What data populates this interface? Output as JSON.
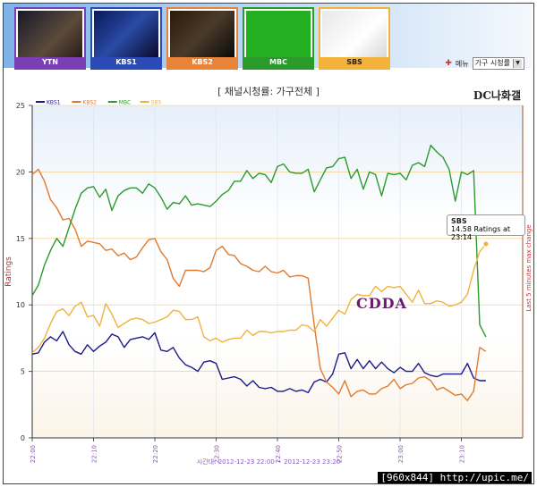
{
  "channels": [
    {
      "name": "YTN",
      "border": "#7a3fb5",
      "bar": "#7a3fb5"
    },
    {
      "name": "KBS1",
      "border": "#2a4bb5",
      "bar": "#2a4bb5"
    },
    {
      "name": "KBS2",
      "border": "#e8843a",
      "bar": "#e8843a"
    },
    {
      "name": "MBC",
      "border": "#2a9a2a",
      "bar": "#2a9a2a"
    },
    {
      "name": "SBS",
      "border": "#f3b23a",
      "bar": "#f3b23a"
    }
  ],
  "menu": {
    "label": "메뉴",
    "select_value": "가구 시청률"
  },
  "watermark": "DC나화갤",
  "annotation": "CDDA",
  "footer": "[960x844] http://upic.me/",
  "tooltip": {
    "series": "SBS",
    "text": "14.58 Ratings at 23:14"
  },
  "chart_data": {
    "type": "line",
    "title": "[ 채널시청률: 가구전체 ]",
    "ylabel": "Ratings",
    "y2label": "Last 5 minutes max change",
    "xlabel": "시간대: 2012-12-23 22:00 ~ 2012-12-23 23:20",
    "ylim": [
      0,
      25
    ],
    "yticks": [
      0,
      5,
      10,
      15,
      20,
      25
    ],
    "xlim": [
      0,
      80
    ],
    "xticks": [
      {
        "v": 0,
        "label": "22:00"
      },
      {
        "v": 10,
        "label": "22:10"
      },
      {
        "v": 20,
        "label": "22:20"
      },
      {
        "v": 30,
        "label": "22:30"
      },
      {
        "v": 40,
        "label": "22:40"
      },
      {
        "v": 50,
        "label": "22:50"
      },
      {
        "v": 60,
        "label": "23:00"
      },
      {
        "v": 70,
        "label": "23:10"
      }
    ],
    "grid": true,
    "legend_position": "top-left",
    "series": [
      {
        "name": "KBS1",
        "color": "#1a1a8a",
        "x": [
          0,
          1,
          2,
          3,
          4,
          5,
          6,
          7,
          8,
          9,
          10,
          11,
          12,
          13,
          14,
          15,
          16,
          17,
          18,
          19,
          20,
          21,
          22,
          23,
          24,
          25,
          26,
          27,
          28,
          29,
          30,
          31,
          32,
          33,
          34,
          35,
          36,
          37,
          38,
          39,
          40,
          41,
          42,
          43,
          44,
          45,
          46,
          47,
          48,
          49,
          50,
          51,
          52,
          53,
          54,
          55,
          56,
          57,
          58,
          59,
          60,
          61,
          62,
          63,
          64,
          65,
          66,
          67,
          68,
          69,
          70,
          71,
          72,
          73,
          74
        ],
        "y": [
          6.3,
          6.4,
          7.2,
          7.6,
          7.3,
          8.0,
          7.0,
          6.5,
          6.3,
          7.0,
          6.5,
          6.9,
          7.2,
          7.8,
          7.6,
          6.8,
          7.4,
          7.5,
          7.6,
          7.4,
          7.9,
          6.6,
          6.5,
          6.8,
          6.0,
          5.5,
          5.3,
          5.0,
          5.7,
          5.8,
          5.6,
          4.4,
          4.5,
          4.6,
          4.4,
          3.9,
          4.3,
          3.8,
          3.7,
          3.8,
          3.5,
          3.5,
          3.7,
          3.5,
          3.6,
          3.4,
          4.2,
          4.4,
          4.2,
          4.8,
          6.3,
          6.4,
          5.2,
          5.9,
          5.2,
          5.8,
          5.2,
          5.7,
          5.2,
          4.9,
          5.3,
          5.0,
          5.0,
          5.6,
          4.9,
          4.7,
          4.6,
          4.8,
          4.8,
          4.8,
          4.8,
          5.6,
          4.5,
          4.3,
          4.3
        ]
      },
      {
        "name": "KBS2",
        "color": "#e07a2e",
        "x": [
          0,
          1,
          2,
          3,
          4,
          5,
          6,
          7,
          8,
          9,
          10,
          11,
          12,
          13,
          14,
          15,
          16,
          17,
          18,
          19,
          20,
          21,
          22,
          23,
          24,
          25,
          26,
          27,
          28,
          29,
          30,
          31,
          32,
          33,
          34,
          35,
          36,
          37,
          38,
          39,
          40,
          41,
          42,
          43,
          44,
          45,
          46,
          47,
          48,
          49,
          50,
          51,
          52,
          53,
          54,
          55,
          56,
          57,
          58,
          59,
          60,
          61,
          62,
          63,
          64,
          65,
          66,
          67,
          68,
          69,
          70,
          71,
          72,
          73,
          74
        ],
        "y": [
          19.8,
          20.2,
          19.3,
          17.9,
          17.3,
          16.4,
          16.5,
          15.7,
          14.4,
          14.8,
          14.7,
          14.6,
          14.1,
          14.2,
          13.7,
          13.9,
          13.4,
          13.6,
          14.3,
          14.9,
          15.0,
          14.0,
          13.4,
          12.0,
          11.4,
          12.6,
          12.6,
          12.6,
          12.5,
          12.8,
          14.1,
          14.4,
          13.8,
          13.7,
          13.1,
          12.9,
          12.6,
          12.5,
          12.9,
          12.5,
          12.4,
          12.6,
          12.1,
          12.2,
          12.2,
          12.0,
          8.5,
          5.2,
          4.2,
          3.8,
          3.3,
          4.3,
          3.1,
          3.5,
          3.6,
          3.3,
          3.3,
          3.7,
          3.9,
          4.4,
          3.7,
          4.0,
          4.1,
          4.5,
          4.6,
          4.3,
          3.6,
          3.8,
          3.5,
          3.2,
          3.3,
          2.8,
          3.5,
          6.8,
          6.5
        ]
      },
      {
        "name": "MBC",
        "color": "#2c9a2c",
        "x": [
          0,
          1,
          2,
          3,
          4,
          5,
          6,
          7,
          8,
          9,
          10,
          11,
          12,
          13,
          14,
          15,
          16,
          17,
          18,
          19,
          20,
          21,
          22,
          23,
          24,
          25,
          26,
          27,
          28,
          29,
          30,
          31,
          32,
          33,
          34,
          35,
          36,
          37,
          38,
          39,
          40,
          41,
          42,
          43,
          44,
          45,
          46,
          47,
          48,
          49,
          50,
          51,
          52,
          53,
          54,
          55,
          56,
          57,
          58,
          59,
          60,
          61,
          62,
          63,
          64,
          65,
          66,
          67,
          68,
          69,
          70,
          71,
          72,
          73,
          74
        ],
        "y": [
          10.7,
          11.5,
          13.0,
          14.1,
          15.0,
          14.4,
          15.8,
          17.2,
          18.4,
          18.8,
          18.9,
          18.1,
          18.7,
          17.1,
          18.2,
          18.6,
          18.8,
          18.8,
          18.4,
          19.1,
          18.8,
          18.1,
          17.2,
          17.7,
          17.6,
          18.2,
          17.5,
          17.6,
          17.5,
          17.4,
          17.8,
          18.3,
          18.6,
          19.3,
          19.3,
          20.1,
          19.5,
          19.9,
          19.8,
          19.2,
          20.4,
          20.6,
          20.0,
          19.9,
          19.9,
          20.2,
          18.5,
          19.4,
          20.3,
          20.4,
          21.0,
          21.1,
          19.5,
          20.2,
          18.7,
          20.0,
          19.8,
          18.2,
          19.9,
          19.8,
          19.9,
          19.4,
          20.5,
          20.7,
          20.4,
          22.0,
          21.5,
          21.1,
          20.2,
          17.8,
          20.0,
          19.8,
          20.1,
          8.5,
          7.6
        ]
      },
      {
        "name": "SBS",
        "color": "#f0b23a",
        "x": [
          0,
          1,
          2,
          3,
          4,
          5,
          6,
          7,
          8,
          9,
          10,
          11,
          12,
          13,
          14,
          15,
          16,
          17,
          18,
          19,
          20,
          21,
          22,
          23,
          24,
          25,
          26,
          27,
          28,
          29,
          30,
          31,
          32,
          33,
          34,
          35,
          36,
          37,
          38,
          39,
          40,
          41,
          42,
          43,
          44,
          45,
          46,
          47,
          48,
          49,
          50,
          51,
          52,
          53,
          54,
          55,
          56,
          57,
          58,
          59,
          60,
          61,
          62,
          63,
          64,
          65,
          66,
          67,
          68,
          69,
          70,
          71,
          72,
          73,
          74
        ],
        "y": [
          6.4,
          6.8,
          7.5,
          8.6,
          9.5,
          9.7,
          9.2,
          9.9,
          10.2,
          9.1,
          9.2,
          8.4,
          10.1,
          9.3,
          8.3,
          8.6,
          8.9,
          9.0,
          8.9,
          8.6,
          8.7,
          8.9,
          9.1,
          9.6,
          9.5,
          8.9,
          8.9,
          9.1,
          7.6,
          7.3,
          7.5,
          7.2,
          7.4,
          7.5,
          7.5,
          8.1,
          7.7,
          8.0,
          8.0,
          7.9,
          8.0,
          8.0,
          8.1,
          8.1,
          8.5,
          8.4,
          8.0,
          8.9,
          8.4,
          9.0,
          9.6,
          9.3,
          10.4,
          10.8,
          10.7,
          10.7,
          11.4,
          11.0,
          11.4,
          11.3,
          11.4,
          10.8,
          10.2,
          11.1,
          10.1,
          10.1,
          10.3,
          10.2,
          9.9,
          10.0,
          10.2,
          10.8,
          12.6,
          14.0,
          14.58
        ]
      }
    ]
  }
}
